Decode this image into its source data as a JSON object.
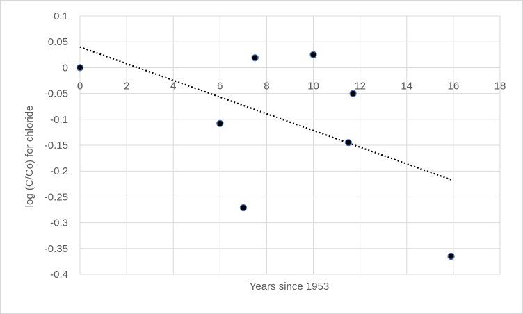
{
  "chart_data": {
    "type": "scatter",
    "title": "",
    "xlabel": "Years since 1953",
    "ylabel": "log (C/Co) for chloride",
    "xlim": [
      0,
      18
    ],
    "ylim": [
      -0.4,
      0.1
    ],
    "x_ticks": [
      0,
      2,
      4,
      6,
      8,
      10,
      12,
      14,
      16,
      18
    ],
    "x_tick_labels": [
      "0",
      "2",
      "4",
      "6",
      "8",
      "10",
      "12",
      "14",
      "16",
      "18"
    ],
    "y_ticks": [
      0.1,
      0.05,
      0,
      -0.05,
      -0.1,
      -0.15,
      -0.2,
      -0.25,
      -0.3,
      -0.35,
      -0.4
    ],
    "y_tick_labels": [
      "0.1",
      "0.05",
      "0",
      "-0.05",
      "-0.1",
      "-0.15",
      "-0.2",
      "-0.25",
      "-0.3",
      "-0.35",
      "-0.4"
    ],
    "grid": true,
    "legend": "none",
    "series": [
      {
        "x": [
          0,
          6,
          7,
          7.5,
          10,
          11.5,
          11.7,
          15.9
        ],
        "y": [
          0,
          -0.108,
          -0.271,
          0.019,
          0.025,
          -0.145,
          -0.05,
          -0.365
        ],
        "marker": "circle",
        "color": "#000000",
        "edge_color": "#4472c4"
      }
    ],
    "trendline": {
      "type": "linear",
      "style": "dotted",
      "color": "#000000",
      "x_range": [
        0,
        15.9
      ],
      "slope": -0.01615,
      "intercept": 0.04
    }
  },
  "colors": {
    "gridline": "#d9d9d9",
    "tick_text": "#595959",
    "axis_line": "#d9d9d9"
  }
}
